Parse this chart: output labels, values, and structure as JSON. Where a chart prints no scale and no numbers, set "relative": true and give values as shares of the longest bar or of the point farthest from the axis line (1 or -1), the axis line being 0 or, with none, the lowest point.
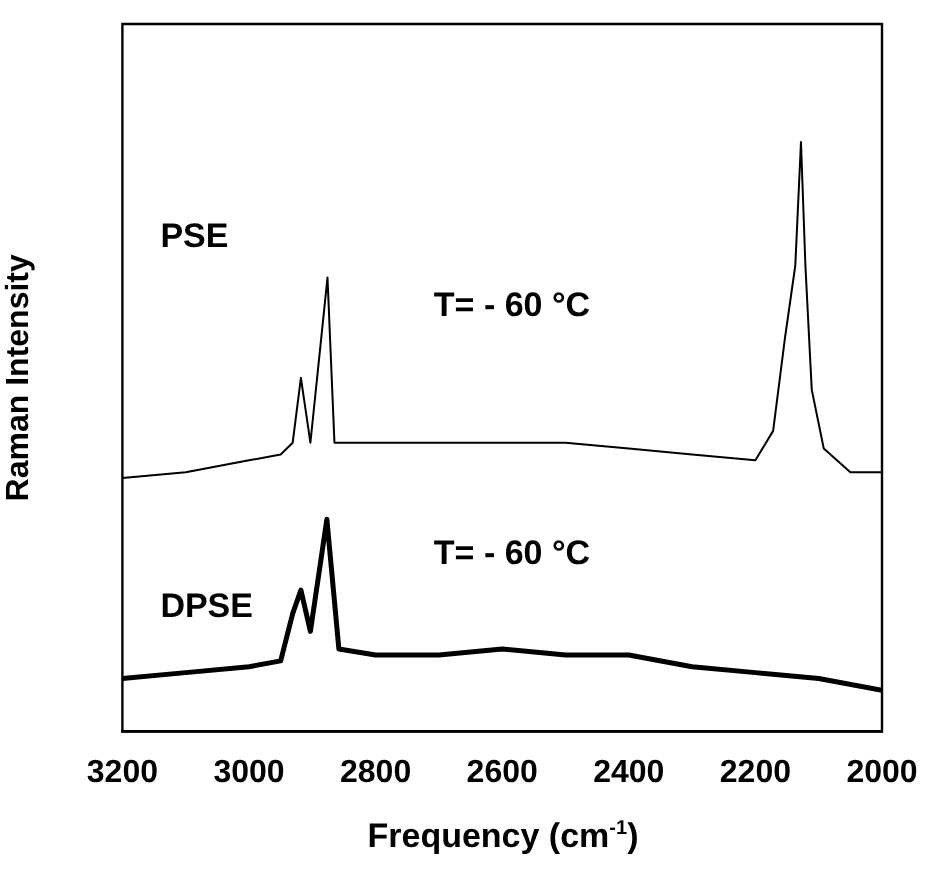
{
  "chart_data": {
    "type": "line",
    "xlabel": "Frequency (cm$^{-1}$)",
    "ylabel": "Raman Intensity",
    "xlim": [
      3200,
      2000
    ],
    "xticks": [
      3200,
      3000,
      2800,
      2600,
      2400,
      2200,
      2000
    ],
    "relative": true,
    "tick_labels": "x",
    "grid": false,
    "legend": false,
    "marker": "none",
    "line_style": "solid",
    "annotations": [
      "T= - 60 °C",
      "T= - 60 °C"
    ],
    "series": [
      {
        "name": "PSE",
        "color": "#000000",
        "x": [
          3200,
          3100,
          3000,
          2950,
          2931,
          2918,
          2903,
          2876,
          2865,
          2800,
          2700,
          2600,
          2500,
          2400,
          2300,
          2200,
          2172,
          2153,
          2137,
          2128,
          2121,
          2111,
          2092,
          2050,
          2000
        ],
        "values": [
          0.43,
          0.44,
          0.46,
          0.47,
          0.49,
          0.6,
          0.49,
          0.77,
          0.49,
          0.49,
          0.49,
          0.49,
          0.49,
          0.48,
          0.47,
          0.46,
          0.51,
          0.67,
          0.79,
          1.0,
          0.79,
          0.58,
          0.48,
          0.44,
          0.44
        ]
      },
      {
        "name": "DPSE",
        "color": "#000000",
        "x": [
          3200,
          3100,
          3000,
          2950,
          2931,
          2918,
          2903,
          2877,
          2858,
          2800,
          2700,
          2600,
          2500,
          2400,
          2300,
          2200,
          2100,
          2000
        ],
        "values": [
          0.09,
          0.1,
          0.11,
          0.12,
          0.2,
          0.24,
          0.17,
          0.36,
          0.14,
          0.13,
          0.13,
          0.14,
          0.13,
          0.13,
          0.11,
          0.1,
          0.09,
          0.07
        ]
      }
    ]
  }
}
